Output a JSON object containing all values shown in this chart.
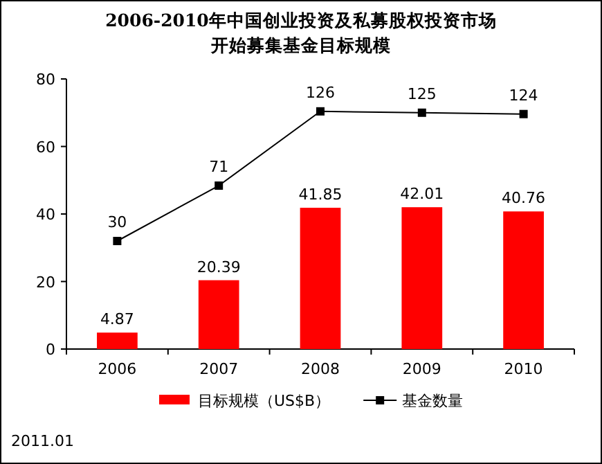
{
  "chart_data": {
    "type": "bar",
    "title": "2006-2010年中国创业投资及私募股权投资市场开始募集基金目标规模",
    "categories": [
      "2006",
      "2007",
      "2008",
      "2009",
      "2010"
    ],
    "series": [
      {
        "name": "目标规模（US$B）",
        "color": "#ff0000",
        "values": [
          4.87,
          20.39,
          41.85,
          42.01,
          40.76
        ]
      },
      {
        "name": "基金数量",
        "type": "line",
        "axis": "y2",
        "color": "#000000",
        "values": [
          30,
          71,
          126,
          125,
          124
        ]
      }
    ],
    "ylim": [
      0,
      80
    ],
    "yticks": [
      0,
      20,
      40,
      60,
      80
    ],
    "y2lim": [
      -50,
      150
    ],
    "tick_labels": "y",
    "data_labels": true,
    "marker": "square",
    "legend": "bottom",
    "grid": false,
    "annotations": [
      "2011.01"
    ]
  }
}
